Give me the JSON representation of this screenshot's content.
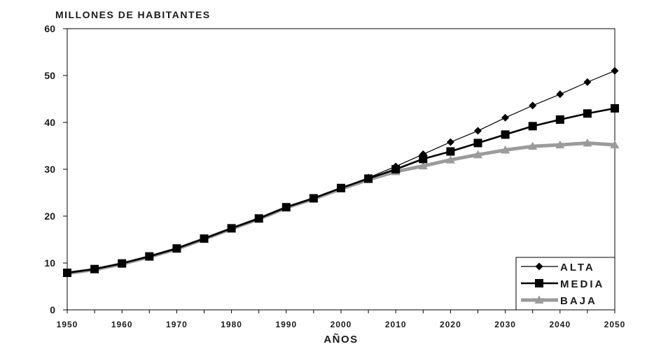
{
  "chart_data": {
    "type": "line",
    "ylabel": "MILLONES DE HABITANTES",
    "xlabel": "AÑOS",
    "x": [
      1950,
      1955,
      1960,
      1965,
      1970,
      1975,
      1980,
      1985,
      1990,
      1995,
      2000,
      2005,
      2010,
      2015,
      2020,
      2025,
      2030,
      2035,
      2040,
      2045,
      2050
    ],
    "xticks": [
      "1950",
      "1960",
      "1970",
      "1980",
      "1990",
      "2000",
      "2010",
      "2020",
      "2030",
      "2040",
      "2050"
    ],
    "yticks": [
      "0",
      "10",
      "20",
      "30",
      "40",
      "50",
      "60"
    ],
    "ylim": [
      0,
      60
    ],
    "xlim": [
      1950,
      2050
    ],
    "grid": false,
    "legend_position": "bottom-right",
    "series": [
      {
        "name": "ALTA",
        "color": "#000000",
        "marker": "diamond",
        "values": [
          7.9,
          8.7,
          9.9,
          11.4,
          13.1,
          15.2,
          17.4,
          19.5,
          21.9,
          23.8,
          26.0,
          28.2,
          30.6,
          33.2,
          35.8,
          38.2,
          41.0,
          43.6,
          46.0,
          48.6,
          51.0
        ]
      },
      {
        "name": "MEDIA",
        "color": "#000000",
        "marker": "square",
        "values": [
          7.9,
          8.7,
          9.9,
          11.4,
          13.1,
          15.2,
          17.4,
          19.5,
          21.9,
          23.8,
          26.0,
          28.0,
          30.0,
          32.2,
          33.8,
          35.6,
          37.4,
          39.2,
          40.6,
          41.9,
          43.0
        ]
      },
      {
        "name": "BAJA",
        "color": "#9b9b9b",
        "marker": "triangle",
        "values": [
          7.8,
          8.6,
          9.8,
          11.3,
          13.0,
          15.1,
          17.3,
          19.4,
          21.8,
          23.7,
          25.8,
          27.8,
          29.5,
          30.7,
          32.0,
          33.1,
          34.1,
          34.9,
          35.2,
          35.6,
          35.2
        ]
      }
    ]
  }
}
